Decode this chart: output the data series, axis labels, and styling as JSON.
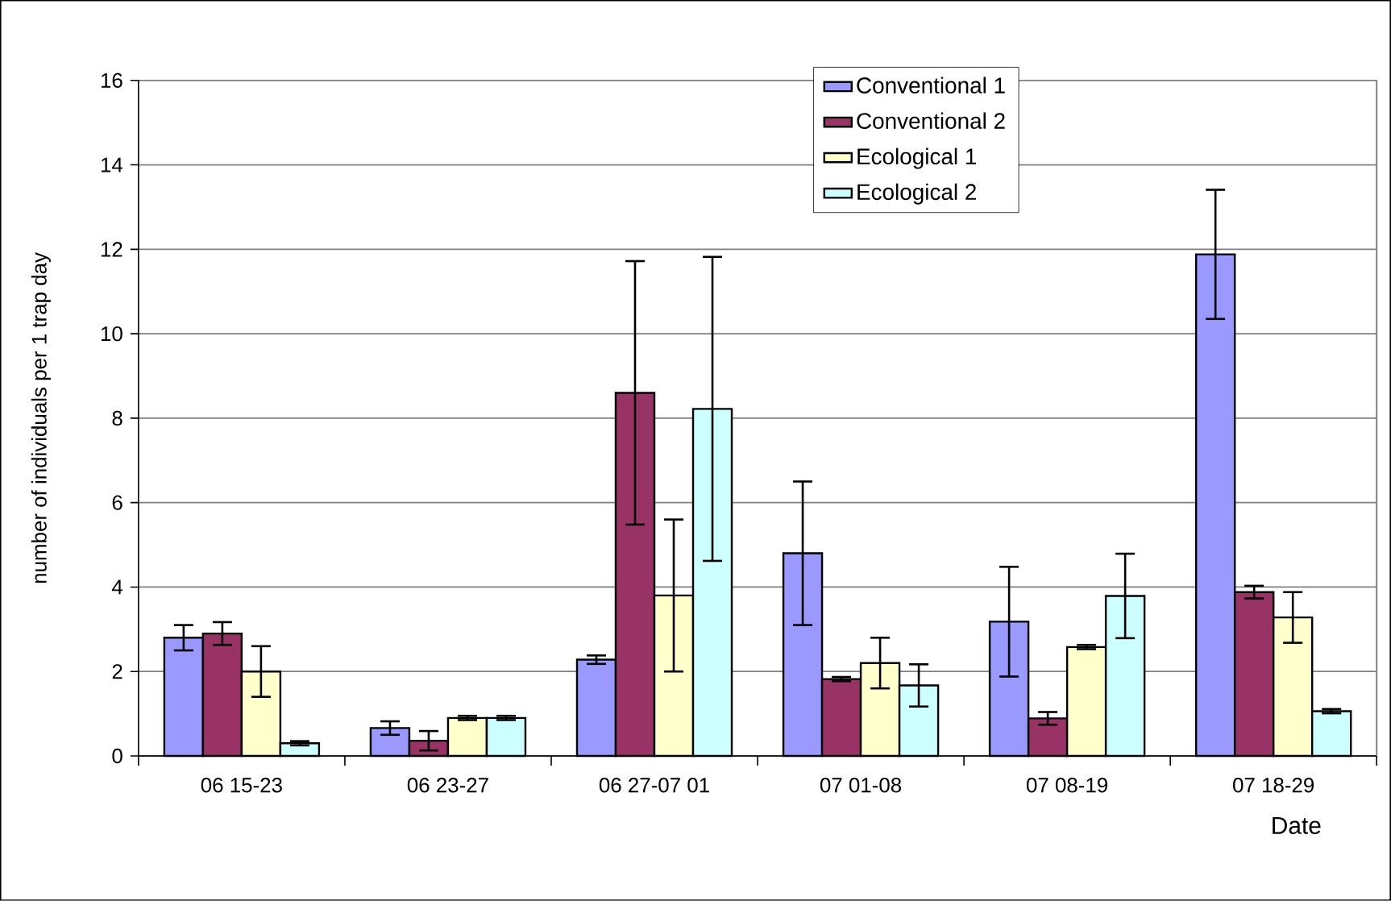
{
  "chart_data": {
    "type": "bar",
    "xlabel": "Date",
    "ylabel": "number of individuals per 1 trap day",
    "categories": [
      "06 15-23",
      "06 23-27",
      "06 27-07 01",
      "07 01-08",
      "07 08-19",
      "07 18-29"
    ],
    "series": [
      {
        "name": "Conventional 1",
        "color": "#9999ff",
        "values": [
          2.8,
          0.66,
          2.28,
          4.8,
          3.18,
          11.88
        ],
        "errors": [
          0.3,
          0.16,
          0.1,
          1.7,
          1.3,
          1.53
        ]
      },
      {
        "name": "Conventional 2",
        "color": "#993366",
        "values": [
          2.9,
          0.36,
          8.6,
          1.82,
          0.89,
          3.88
        ],
        "errors": [
          0.27,
          0.23,
          3.12,
          0.05,
          0.15,
          0.15
        ]
      },
      {
        "name": "Ecological 1",
        "color": "#ffffcc",
        "values": [
          2.0,
          0.9,
          3.8,
          2.2,
          2.58,
          3.28
        ],
        "errors": [
          0.6,
          0.05,
          1.8,
          0.6,
          0.05,
          0.6
        ]
      },
      {
        "name": "Ecological 2",
        "color": "#ccffff",
        "values": [
          0.3,
          0.9,
          8.22,
          1.67,
          3.79,
          1.06
        ],
        "errors": [
          0.05,
          0.05,
          3.6,
          0.5,
          1.0,
          0.05
        ]
      }
    ],
    "ylim": [
      0,
      16
    ],
    "yticks": [
      0,
      2,
      4,
      6,
      8,
      10,
      12,
      14,
      16
    ],
    "grid": "y",
    "legend": "top right"
  }
}
